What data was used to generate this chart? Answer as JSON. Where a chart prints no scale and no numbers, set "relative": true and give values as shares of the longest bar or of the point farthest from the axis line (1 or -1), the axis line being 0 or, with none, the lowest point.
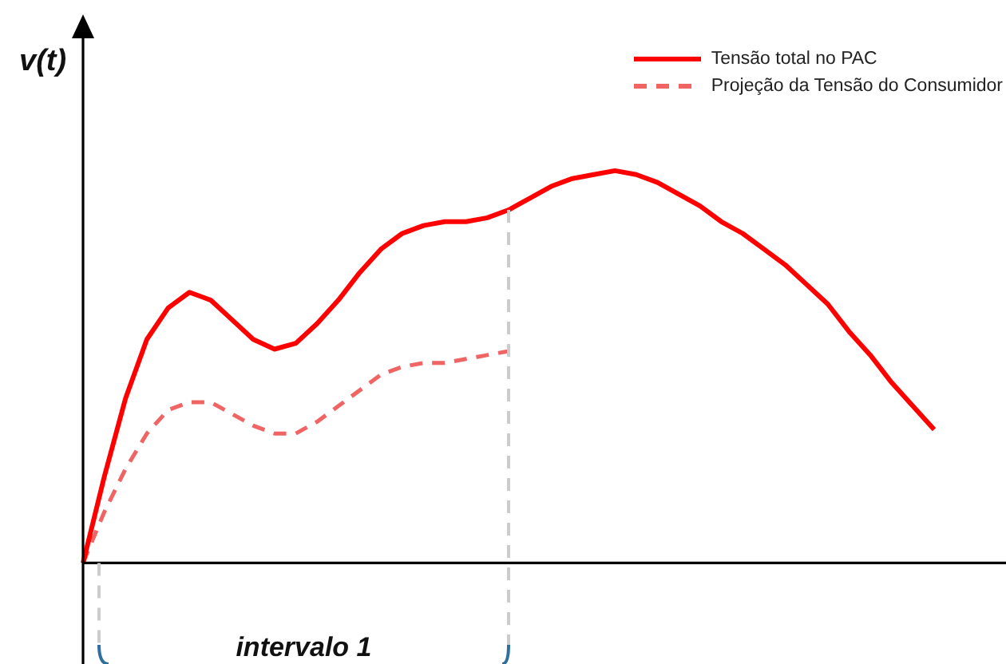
{
  "chart_data": {
    "type": "line",
    "relative": true,
    "ylabel": "v(t)",
    "legend": "top right",
    "marker": "none",
    "categories": [
      null,
      null,
      null,
      null,
      null,
      null,
      null,
      null,
      null,
      null,
      null,
      null,
      null,
      null,
      null,
      null,
      null,
      null,
      null,
      null,
      null,
      null,
      null,
      null,
      null,
      null,
      null,
      null,
      null,
      null,
      null,
      null,
      null,
      null,
      null,
      null,
      null,
      null,
      null,
      null,
      null
    ],
    "series": [
      {
        "name": "Tensão total no PAC",
        "color": "#ff0000",
        "line_style": "solid",
        "values": [
          0,
          0.22,
          0.42,
          0.57,
          0.65,
          0.69,
          0.67,
          0.62,
          0.57,
          0.545,
          0.56,
          0.61,
          0.67,
          0.74,
          0.8,
          0.84,
          0.86,
          0.87,
          0.87,
          0.88,
          0.9,
          0.93,
          0.96,
          0.98,
          0.99,
          1,
          0.99,
          0.97,
          0.94,
          0.91,
          0.87,
          0.84,
          0.8,
          0.76,
          0.71,
          0.66,
          0.59,
          0.53,
          0.46,
          0.4,
          0.34
        ]
      },
      {
        "name": "Projeção da Tensão do Consumidor",
        "color": "#f06464",
        "line_style": "dashed",
        "values": [
          0,
          0.13,
          0.24,
          0.33,
          0.39,
          0.41,
          0.41,
          0.38,
          0.35,
          0.33,
          0.33,
          0.36,
          0.4,
          0.44,
          0.48,
          0.5,
          0.51,
          0.51,
          0.52,
          0.53,
          0.54,
          null,
          null,
          null,
          null,
          null,
          null,
          null,
          null,
          null,
          null,
          null,
          null,
          null,
          null,
          null,
          null,
          null,
          null,
          null,
          null
        ]
      }
    ],
    "annotations": [
      "intervalo 1"
    ]
  }
}
